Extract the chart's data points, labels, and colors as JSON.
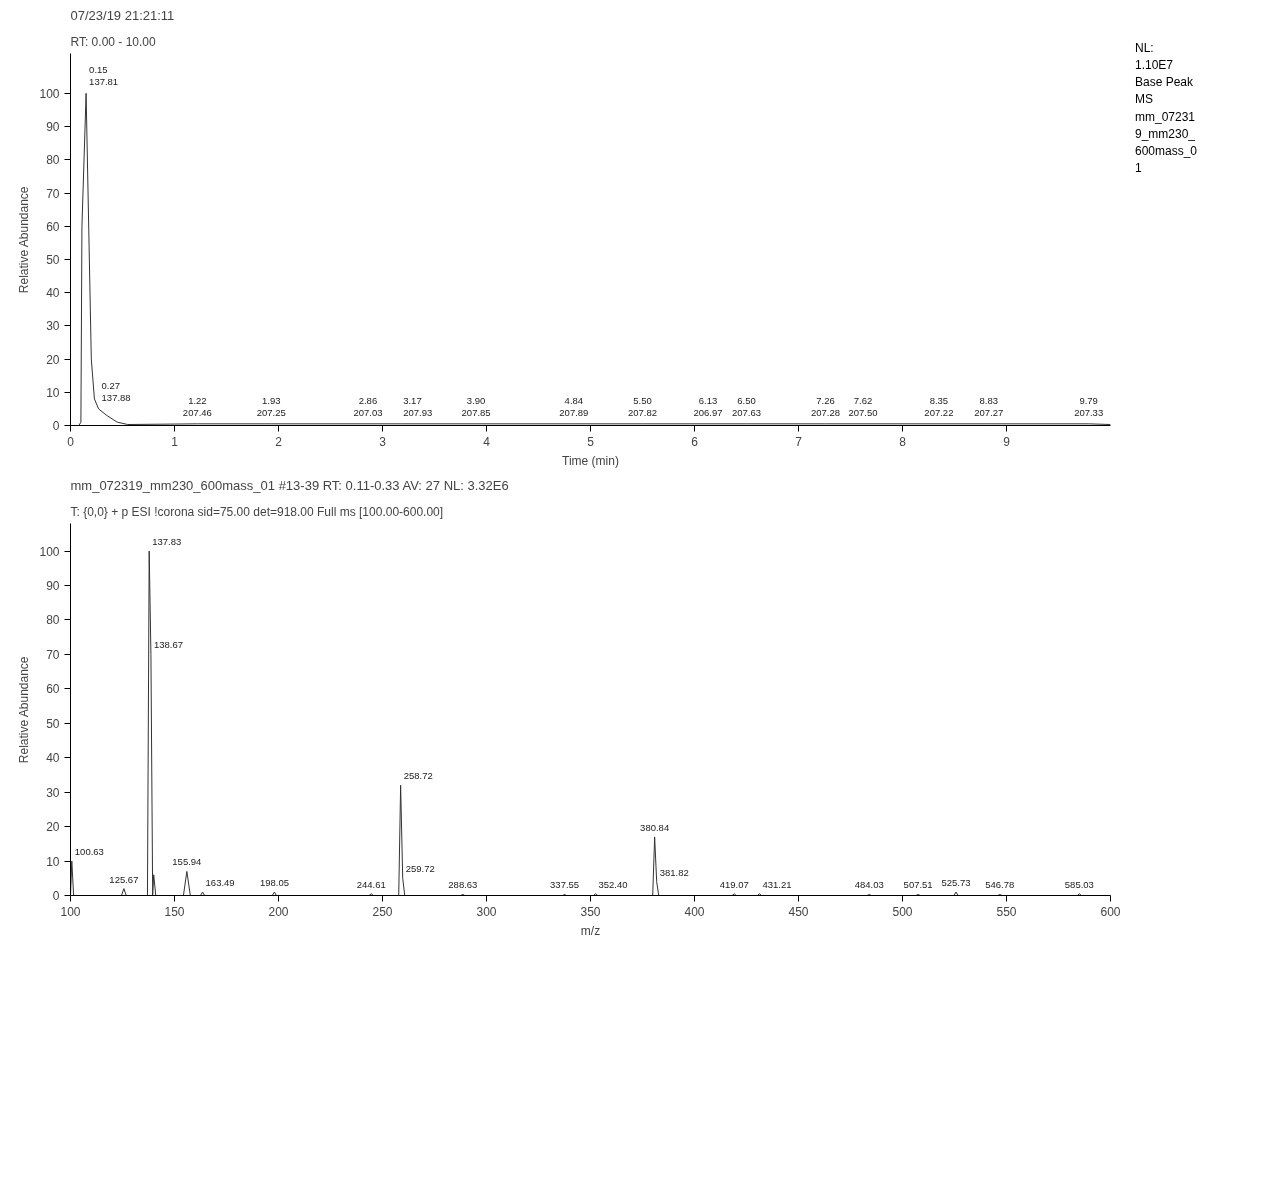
{
  "chart_data": [
    {
      "type": "line",
      "title": "07/23/19 21:21:11",
      "subtitle": "RT: 0.00 - 10.00",
      "xlabel": "Time (min)",
      "ylabel": "Relative Abundance",
      "x": [
        0,
        0.08,
        0.1,
        0.11,
        0.15,
        0.2,
        0.23,
        0.27,
        0.35,
        0.45,
        0.55,
        1.22,
        1.93,
        2.86,
        3.17,
        3.9,
        4.84,
        5.5,
        6.13,
        6.5,
        7.26,
        7.62,
        8.35,
        8.83,
        9.79,
        10
      ],
      "series": [
        {
          "color": "#333333",
          "values": [
            0,
            0,
            1,
            60,
            100,
            20,
            8,
            5,
            3,
            1,
            0.3,
            0.5,
            0.5,
            0.5,
            0.5,
            0.5,
            0.5,
            0.5,
            0.5,
            0.5,
            0.5,
            0.5,
            0.5,
            0.5,
            0.5,
            0.3
          ]
        }
      ],
      "xlim": [
        0,
        10
      ],
      "ylim": [
        0,
        112
      ],
      "xticks": [
        0,
        1,
        2,
        3,
        4,
        5,
        6,
        7,
        8,
        9
      ],
      "yticks": [
        0,
        10,
        20,
        30,
        40,
        50,
        60,
        70,
        80,
        90,
        100
      ],
      "grid": false,
      "marker": "none",
      "line_style": "solid",
      "annotations": [
        "NL:\n1.10E7\nBase Peak\nMS\nmm_07231\n9_mm230_\n600mass_0\n1",
        {
          "text": "0.15\n137.81",
          "x": 0.15,
          "y": 100
        },
        {
          "text": "0.27\n137.88",
          "x": 0.27,
          "y": 5
        },
        {
          "text": "1.22\n207.46",
          "x": 1.22,
          "y": 0.5
        },
        {
          "text": "1.93\n207.25",
          "x": 1.93,
          "y": 0.5
        },
        {
          "text": "2.86\n207.03",
          "x": 2.86,
          "y": 0.5
        },
        {
          "text": "3.17\n207.93",
          "x": 3.17,
          "y": 0.5
        },
        {
          "text": "3.90\n207.85",
          "x": 3.9,
          "y": 0.5
        },
        {
          "text": "4.84\n207.89",
          "x": 4.84,
          "y": 0.5
        },
        {
          "text": "5.50\n207.82",
          "x": 5.5,
          "y": 0.5
        },
        {
          "text": "6.13\n206.97",
          "x": 6.13,
          "y": 0.5
        },
        {
          "text": "6.50\n207.63",
          "x": 6.5,
          "y": 0.5
        },
        {
          "text": "7.26\n207.28",
          "x": 7.26,
          "y": 0.5
        },
        {
          "text": "7.62\n207.50",
          "x": 7.62,
          "y": 0.5
        },
        {
          "text": "8.35\n207.22",
          "x": 8.35,
          "y": 0.5
        },
        {
          "text": "8.83\n207.27",
          "x": 8.83,
          "y": 0.5
        },
        {
          "text": "9.79\n207.33",
          "x": 9.79,
          "y": 0.5
        }
      ]
    },
    {
      "type": "line",
      "title": "mm_072319_mm230_600mass_01 #13-39   RT: 0.11-0.33   AV: 27   NL: 3.32E6",
      "subtitle": "T: {0,0}  + p ESI !corona sid=75.00  det=918.00 Full ms [100.00-600.00]",
      "xlabel": "m/z",
      "ylabel": "Relative Abundance",
      "x": [
        100,
        100.63,
        101.5,
        124.5,
        125.67,
        126.8,
        137,
        137.83,
        138.67,
        139.5,
        140,
        141,
        154.3,
        155.94,
        157.6,
        162.5,
        163.49,
        164.5,
        197,
        198.05,
        199,
        243.6,
        244.61,
        245.6,
        257.8,
        258.72,
        259.72,
        260.7,
        287.6,
        288.63,
        289.6,
        336.6,
        337.55,
        338.5,
        351.4,
        352.4,
        353.4,
        379.9,
        380.84,
        381.82,
        382.8,
        418.1,
        419.07,
        420,
        430.2,
        431.21,
        432.2,
        483,
        484.03,
        485,
        506.5,
        507.51,
        508.5,
        524.7,
        525.73,
        526.7,
        545.8,
        546.78,
        547.8,
        584,
        585.03,
        586,
        600
      ],
      "series": [
        {
          "color": "#333333",
          "values": [
            0,
            10,
            0,
            0,
            2,
            0,
            0,
            100,
            70,
            0,
            6,
            0,
            0,
            7,
            0,
            0,
            1,
            0,
            0,
            1,
            0,
            0,
            0.5,
            0,
            0,
            32,
            5,
            0,
            0,
            0.3,
            0,
            0,
            0.3,
            0,
            0,
            0.5,
            0,
            0,
            17,
            4,
            0,
            0,
            0.5,
            0,
            0,
            0.5,
            0,
            0,
            0.3,
            0,
            0,
            0.3,
            0,
            0,
            1,
            0,
            0,
            0.3,
            0,
            0,
            0.5,
            0,
            0
          ]
        }
      ],
      "xlim": [
        100,
        600
      ],
      "ylim": [
        0,
        108
      ],
      "xticks": [
        100,
        150,
        200,
        250,
        300,
        350,
        400,
        450,
        500,
        550,
        600
      ],
      "yticks": [
        0,
        10,
        20,
        30,
        40,
        50,
        60,
        70,
        80,
        90,
        100
      ],
      "grid": false,
      "marker": "none",
      "line_style": "solid",
      "annotations": [
        {
          "text": "100.63",
          "x": 100.63,
          "y": 10
        },
        {
          "text": "125.67",
          "x": 125.67,
          "y": 2
        },
        {
          "text": "137.83",
          "x": 137.83,
          "y": 100
        },
        {
          "text": "138.67",
          "x": 138.67,
          "y": 70
        },
        {
          "text": "155.94",
          "x": 155.94,
          "y": 7
        },
        {
          "text": "163.49",
          "x": 163.49,
          "y": 1
        },
        {
          "text": "198.05",
          "x": 198.05,
          "y": 1
        },
        {
          "text": "244.61",
          "x": 244.61,
          "y": 0.5
        },
        {
          "text": "258.72",
          "x": 258.72,
          "y": 32
        },
        {
          "text": "259.72",
          "x": 259.72,
          "y": 5
        },
        {
          "text": "288.63",
          "x": 288.63,
          "y": 0.3
        },
        {
          "text": "337.55",
          "x": 337.55,
          "y": 0.3
        },
        {
          "text": "352.40",
          "x": 352.4,
          "y": 0.5
        },
        {
          "text": "380.84",
          "x": 380.84,
          "y": 17
        },
        {
          "text": "381.82",
          "x": 381.82,
          "y": 4
        },
        {
          "text": "419.07",
          "x": 419.07,
          "y": 0.5
        },
        {
          "text": "431.21",
          "x": 431.21,
          "y": 0.5
        },
        {
          "text": "484.03",
          "x": 484.03,
          "y": 0.3
        },
        {
          "text": "507.51",
          "x": 507.51,
          "y": 0.3
        },
        {
          "text": "525.73",
          "x": 525.73,
          "y": 1
        },
        {
          "text": "546.78",
          "x": 546.78,
          "y": 0.3
        },
        {
          "text": "585.03",
          "x": 585.03,
          "y": 0.5
        }
      ]
    }
  ]
}
